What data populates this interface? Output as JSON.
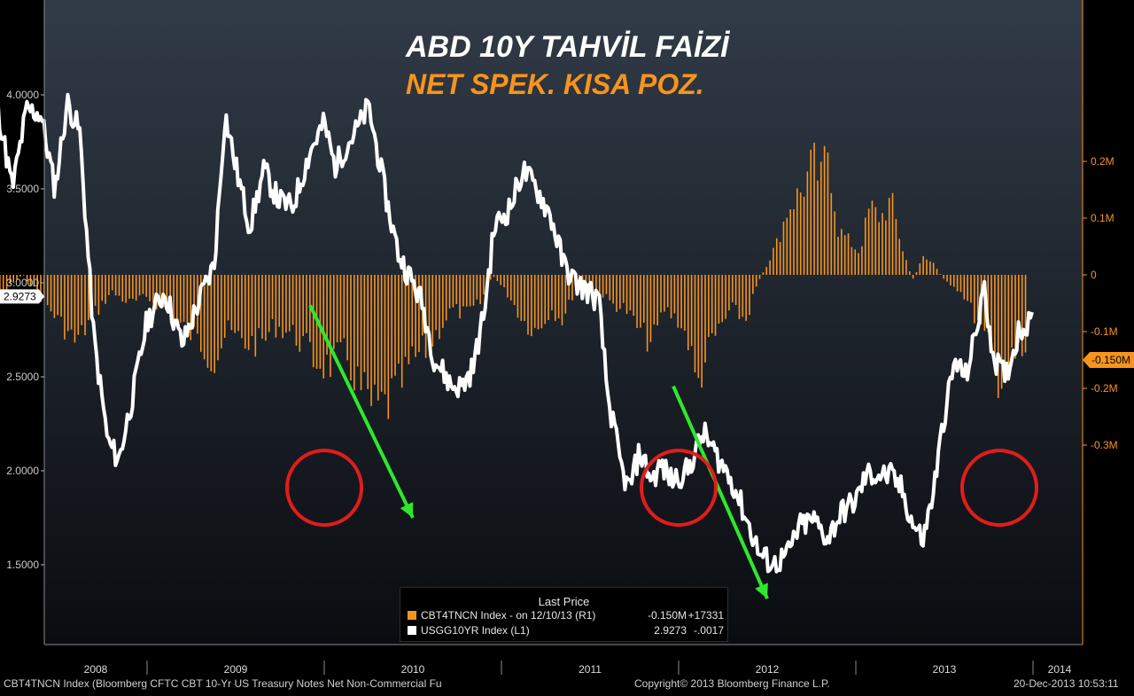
{
  "colors": {
    "bars": "#f7941d",
    "line": "#ffffff",
    "arrow": "#2ee82e",
    "circle": "#e21c1c",
    "axis_left": "#cccccc",
    "axis_right": "#f7941d"
  },
  "title": {
    "line1": "ABD 10Y TAHVİL FAİZİ",
    "line2": "NET SPEK. KISA POZ."
  },
  "legend": {
    "header": "Last Price",
    "rows": [
      {
        "name": "CBT4TNCN Index -  on 12/10/13  (R1)",
        "value": "-0.150M",
        "change": "+17331",
        "color": "#f7941d"
      },
      {
        "name": "USGG10YR Index  (L1)",
        "value": "2.9273",
        "change": "-.0017",
        "color": "#ffffff"
      }
    ]
  },
  "footer": {
    "left": "CBT4TNCN Index (Bloomberg CFTC CBT 10-Yr US Treasury Notes Net Non-Commercial Fu",
    "center": "Copyright© 2013 Bloomberg Finance L.P.",
    "right": "20-Dec-2013 10:53:11"
  },
  "chart_data": {
    "type": "line",
    "x_axis": {
      "ticks": [
        "2008",
        "2009",
        "2010",
        "2011",
        "2012",
        "2013",
        "2014"
      ]
    },
    "left_axis": {
      "range": [
        1.1,
        4.5
      ],
      "ticks": [
        "4.0000",
        "3.5000",
        "3.0000",
        "2.5000",
        "2.0000",
        "1.5000"
      ],
      "last_value_label": "2.9273"
    },
    "right_axis": {
      "range": [
        -0.3,
        0.24
      ],
      "ticks": [
        "0.2M",
        "0.1M",
        "0",
        "-0.1M",
        "-0.2M",
        "-0.3M"
      ],
      "last_value_label": "-0.150M"
    },
    "series": [
      {
        "name": "USGG10YR Index",
        "type": "line",
        "axis": "left",
        "points": [
          [
            2007.87,
            3.95
          ],
          [
            2007.92,
            4.27
          ],
          [
            2008.0,
            4.05
          ],
          [
            2008.08,
            3.76
          ],
          [
            2008.16,
            3.92
          ],
          [
            2008.24,
            3.5
          ],
          [
            2008.32,
            3.92
          ],
          [
            2008.4,
            3.9
          ],
          [
            2008.48,
            3.5
          ],
          [
            2008.55,
            3.96
          ],
          [
            2008.62,
            3.8
          ],
          [
            2008.7,
            2.7
          ],
          [
            2008.78,
            2.15
          ],
          [
            2008.84,
            2.06
          ],
          [
            2008.92,
            2.4
          ],
          [
            2009.0,
            2.8
          ],
          [
            2009.1,
            2.95
          ],
          [
            2009.2,
            2.67
          ],
          [
            2009.3,
            2.92
          ],
          [
            2009.38,
            3.1
          ],
          [
            2009.44,
            3.9
          ],
          [
            2009.5,
            3.62
          ],
          [
            2009.58,
            3.3
          ],
          [
            2009.66,
            3.6
          ],
          [
            2009.74,
            3.44
          ],
          [
            2009.82,
            3.4
          ],
          [
            2009.92,
            3.7
          ],
          [
            2010.0,
            3.85
          ],
          [
            2010.06,
            3.62
          ],
          [
            2010.12,
            3.72
          ],
          [
            2010.2,
            3.84
          ],
          [
            2010.25,
            3.94
          ],
          [
            2010.3,
            3.7
          ],
          [
            2010.36,
            3.4
          ],
          [
            2010.42,
            3.15
          ],
          [
            2010.5,
            3.0
          ],
          [
            2010.55,
            2.9
          ],
          [
            2010.62,
            2.6
          ],
          [
            2010.72,
            2.45
          ],
          [
            2010.78,
            2.45
          ],
          [
            2010.84,
            2.55
          ],
          [
            2010.9,
            2.83
          ],
          [
            2010.96,
            3.3
          ],
          [
            2011.05,
            3.4
          ],
          [
            2011.12,
            3.6
          ],
          [
            2011.2,
            3.5
          ],
          [
            2011.28,
            3.35
          ],
          [
            2011.35,
            3.1
          ],
          [
            2011.42,
            3.0
          ],
          [
            2011.5,
            2.95
          ],
          [
            2011.55,
            2.9
          ],
          [
            2011.6,
            2.4
          ],
          [
            2011.68,
            2.0
          ],
          [
            2011.72,
            1.9
          ],
          [
            2011.78,
            2.1
          ],
          [
            2011.85,
            1.95
          ],
          [
            2011.9,
            2.03
          ],
          [
            2011.96,
            1.95
          ],
          [
            2012.05,
            2.0
          ],
          [
            2012.14,
            2.2
          ],
          [
            2012.22,
            2.07
          ],
          [
            2012.3,
            1.95
          ],
          [
            2012.38,
            1.75
          ],
          [
            2012.46,
            1.55
          ],
          [
            2012.54,
            1.5
          ],
          [
            2012.62,
            1.56
          ],
          [
            2012.68,
            1.7
          ],
          [
            2012.76,
            1.74
          ],
          [
            2012.84,
            1.64
          ],
          [
            2012.92,
            1.78
          ],
          [
            2013.0,
            1.84
          ],
          [
            2013.06,
            1.98
          ],
          [
            2013.12,
            1.98
          ],
          [
            2013.2,
            1.97
          ],
          [
            2013.26,
            1.9
          ],
          [
            2013.32,
            1.72
          ],
          [
            2013.38,
            1.63
          ],
          [
            2013.44,
            1.9
          ],
          [
            2013.5,
            2.3
          ],
          [
            2013.56,
            2.58
          ],
          [
            2013.62,
            2.5
          ],
          [
            2013.68,
            2.74
          ],
          [
            2013.72,
            2.98
          ],
          [
            2013.78,
            2.6
          ],
          [
            2013.84,
            2.5
          ],
          [
            2013.88,
            2.6
          ],
          [
            2013.92,
            2.75
          ],
          [
            2013.96,
            2.77
          ],
          [
            2014.0,
            2.9
          ]
        ]
      },
      {
        "name": "CBT4TNCN Index",
        "type": "bar",
        "axis": "right",
        "points": [
          [
            2007.9,
            -0.01
          ],
          [
            2008.0,
            -0.05
          ],
          [
            2008.08,
            -0.09
          ],
          [
            2008.15,
            -0.06
          ],
          [
            2008.22,
            -0.02
          ],
          [
            2008.3,
            0.0
          ],
          [
            2008.4,
            -0.04
          ],
          [
            2008.5,
            -0.08
          ],
          [
            2008.6,
            -0.12
          ],
          [
            2008.7,
            -0.07
          ],
          [
            2008.8,
            -0.03
          ],
          [
            2008.9,
            -0.05
          ],
          [
            2009.0,
            -0.04
          ],
          [
            2009.1,
            -0.06
          ],
          [
            2009.2,
            -0.09
          ],
          [
            2009.3,
            -0.12
          ],
          [
            2009.38,
            -0.15
          ],
          [
            2009.45,
            -0.1
          ],
          [
            2009.55,
            -0.12
          ],
          [
            2009.65,
            -0.12
          ],
          [
            2009.72,
            -0.09
          ],
          [
            2009.8,
            -0.1
          ],
          [
            2009.88,
            -0.12
          ],
          [
            2009.94,
            -0.15
          ],
          [
            2010.02,
            -0.16
          ],
          [
            2010.12,
            -0.14
          ],
          [
            2010.2,
            -0.2
          ],
          [
            2010.28,
            -0.24
          ],
          [
            2010.35,
            -0.23
          ],
          [
            2010.42,
            -0.2
          ],
          [
            2010.5,
            -0.15
          ],
          [
            2010.58,
            -0.13
          ],
          [
            2010.66,
            -0.09
          ],
          [
            2010.72,
            -0.06
          ],
          [
            2010.8,
            -0.07
          ],
          [
            2010.88,
            -0.05
          ],
          [
            2010.95,
            0.0
          ],
          [
            2011.05,
            -0.04
          ],
          [
            2011.12,
            -0.08
          ],
          [
            2011.2,
            -0.1
          ],
          [
            2011.28,
            -0.06
          ],
          [
            2011.35,
            -0.08
          ],
          [
            2011.42,
            -0.02
          ],
          [
            2011.5,
            -0.02
          ],
          [
            2011.55,
            -0.03
          ],
          [
            2011.62,
            -0.05
          ],
          [
            2011.7,
            -0.06
          ],
          [
            2011.78,
            -0.1
          ],
          [
            2011.85,
            -0.12
          ],
          [
            2011.92,
            -0.06
          ],
          [
            2012.0,
            -0.08
          ],
          [
            2012.06,
            -0.12
          ],
          [
            2012.1,
            -0.2
          ],
          [
            2012.16,
            -0.14
          ],
          [
            2012.22,
            -0.1
          ],
          [
            2012.3,
            -0.06
          ],
          [
            2012.38,
            -0.08
          ],
          [
            2012.44,
            -0.02
          ],
          [
            2012.5,
            0.02
          ],
          [
            2012.56,
            0.06
          ],
          [
            2012.62,
            0.12
          ],
          [
            2012.7,
            0.15
          ],
          [
            2012.76,
            0.2
          ],
          [
            2012.8,
            0.16
          ],
          [
            2012.84,
            0.23
          ],
          [
            2012.9,
            0.08
          ],
          [
            2012.96,
            0.06
          ],
          [
            2013.02,
            0.04
          ],
          [
            2013.08,
            0.12
          ],
          [
            2013.14,
            0.1
          ],
          [
            2013.2,
            0.13
          ],
          [
            2013.26,
            0.05
          ],
          [
            2013.32,
            -0.01
          ],
          [
            2013.38,
            0.03
          ],
          [
            2013.44,
            0.02
          ],
          [
            2013.5,
            -0.01
          ],
          [
            2013.56,
            -0.02
          ],
          [
            2013.62,
            -0.04
          ],
          [
            2013.68,
            -0.08
          ],
          [
            2013.74,
            -0.12
          ],
          [
            2013.8,
            -0.18
          ],
          [
            2013.86,
            -0.17
          ],
          [
            2013.92,
            -0.14
          ],
          [
            2013.96,
            -0.15
          ]
        ]
      }
    ],
    "annotations": {
      "arrows": [
        {
          "from": [
            2009.92,
            2.88
          ],
          "to": [
            2010.5,
            1.75
          ]
        },
        {
          "from": [
            2011.97,
            2.45
          ],
          "to": [
            2012.5,
            1.32
          ]
        }
      ],
      "circles": [
        {
          "center": [
            2010.0,
            1.91
          ],
          "r_years": 0.21
        },
        {
          "center": [
            2012.0,
            1.91
          ],
          "r_years": 0.21
        },
        {
          "center": [
            2013.81,
            1.91
          ],
          "r_years": 0.21
        }
      ]
    }
  }
}
